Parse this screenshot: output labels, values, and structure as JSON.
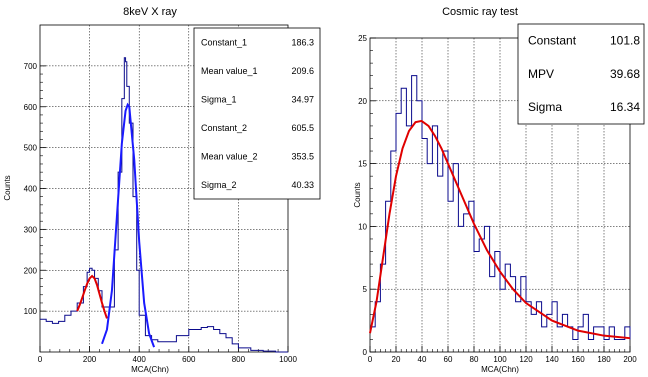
{
  "chart_data": [
    {
      "type": "line",
      "title": "8keV X ray",
      "xlabel": "MCA(Chn)",
      "ylabel": "Counts",
      "xlim": [
        0,
        1000
      ],
      "ylim": [
        0,
        800
      ],
      "xticks": [
        0,
        200,
        400,
        600,
        800,
        1000
      ],
      "yticks": [
        100,
        200,
        300,
        400,
        500,
        600,
        700
      ],
      "grid": true,
      "histogram_color": "#0a0a8c",
      "fit_colors": [
        "#e00000",
        "#1a1aff"
      ],
      "series": [
        {
          "role": "histogram",
          "x": [
            0,
            25,
            50,
            75,
            100,
            125,
            150,
            175,
            190,
            200,
            210,
            220,
            235,
            250,
            275,
            300,
            315,
            330,
            340,
            345,
            350,
            360,
            375,
            390,
            400,
            425,
            450,
            475,
            500,
            550,
            600,
            650,
            675,
            700,
            725,
            750,
            775,
            800,
            850,
            900,
            950,
            1000
          ],
          "y": [
            80,
            75,
            70,
            75,
            90,
            100,
            120,
            160,
            195,
            205,
            200,
            180,
            150,
            110,
            110,
            250,
            440,
            620,
            720,
            710,
            650,
            560,
            380,
            200,
            90,
            40,
            30,
            25,
            25,
            40,
            55,
            60,
            62,
            55,
            45,
            35,
            20,
            10,
            4,
            2,
            0,
            0
          ]
        },
        {
          "role": "fit-1",
          "x": [
            150,
            160,
            170,
            180,
            190,
            200,
            210,
            220,
            230,
            240,
            250,
            260,
            270
          ],
          "y": [
            100,
            115,
            132,
            150,
            167,
            180,
            186,
            180,
            164,
            142,
            120,
            100,
            82
          ]
        },
        {
          "role": "fit-2",
          "x": [
            250,
            270,
            290,
            310,
            330,
            345,
            353.5,
            360,
            380,
            400,
            420,
            440,
            460
          ],
          "y": [
            20,
            55,
            150,
            330,
            510,
            590,
            605,
            600,
            470,
            270,
            120,
            45,
            12
          ]
        }
      ],
      "stats": [
        {
          "label": "Constant_1",
          "value": "186.3"
        },
        {
          "label": "Mean value_1",
          "value": "209.6"
        },
        {
          "label": "Sigma_1",
          "value": "34.97"
        },
        {
          "label": "Constant_2",
          "value": "605.5"
        },
        {
          "label": "Mean value_2",
          "value": "353.5"
        },
        {
          "label": "Sigma_2",
          "value": "40.33"
        }
      ]
    },
    {
      "type": "line",
      "title": "Cosmic ray test",
      "xlabel": "MCA(Chn)",
      "ylabel": "Counts",
      "xlim": [
        0,
        200
      ],
      "ylim": [
        0,
        25
      ],
      "xticks": [
        0,
        20,
        40,
        60,
        80,
        100,
        120,
        140,
        160,
        180,
        200
      ],
      "yticks": [
        0,
        5,
        10,
        15,
        20,
        25
      ],
      "grid": true,
      "histogram_color": "#0a0a8c",
      "fit_color": "#e00000",
      "series": [
        {
          "role": "histogram",
          "x": [
            0,
            4,
            8,
            12,
            16,
            20,
            24,
            28,
            32,
            36,
            40,
            44,
            48,
            52,
            56,
            60,
            64,
            68,
            72,
            76,
            80,
            84,
            88,
            92,
            96,
            100,
            104,
            108,
            112,
            116,
            120,
            124,
            128,
            132,
            136,
            140,
            144,
            148,
            152,
            156,
            160,
            164,
            168,
            172,
            176,
            180,
            184,
            188,
            192,
            196,
            200
          ],
          "y": [
            2,
            4,
            7,
            12,
            16,
            19,
            21,
            18,
            22,
            20,
            17,
            15,
            18,
            14,
            16,
            12,
            15,
            10,
            11,
            12,
            8,
            9,
            10,
            6,
            8,
            5,
            7,
            6,
            4,
            6,
            4,
            3,
            4,
            2,
            3,
            4,
            2,
            3,
            2,
            1,
            2,
            3,
            1,
            2,
            2,
            1,
            2,
            1,
            1,
            2,
            1
          ]
        },
        {
          "role": "fit",
          "x": [
            0,
            5,
            10,
            15,
            20,
            25,
            30,
            35,
            39.68,
            45,
            50,
            55,
            60,
            70,
            80,
            90,
            100,
            110,
            120,
            140,
            160,
            180,
            200
          ],
          "y": [
            1.5,
            4,
            7.5,
            11,
            14,
            16.2,
            17.6,
            18.3,
            18.4,
            18,
            17.2,
            16.2,
            15,
            12.6,
            10.2,
            8.1,
            6.4,
            5,
            3.9,
            2.5,
            1.7,
            1.3,
            1.1
          ]
        }
      ],
      "stats": [
        {
          "label": "Constant",
          "value": "101.8"
        },
        {
          "label": "MPV",
          "value": "39.68"
        },
        {
          "label": "Sigma",
          "value": "16.34"
        }
      ]
    }
  ]
}
